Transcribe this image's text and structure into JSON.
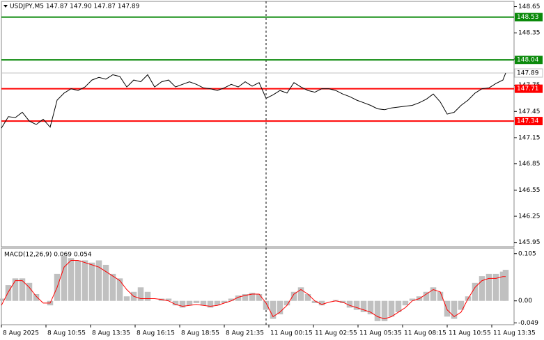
{
  "chart_data": [
    {
      "type": "line",
      "title": "USDJPY,M5  147.87 147.90 147.87 147.89",
      "color": "#000000",
      "x": [
        0,
        5,
        10,
        15,
        20,
        25,
        30,
        35,
        40,
        45,
        50,
        55,
        60,
        65,
        70,
        75,
        80,
        85,
        90,
        95,
        100,
        105,
        110,
        115,
        120,
        125,
        130,
        135,
        140,
        145,
        150,
        155,
        160,
        165,
        170,
        175,
        180,
        185,
        190,
        195,
        200,
        205,
        210,
        215,
        220,
        225,
        230,
        235,
        240,
        245,
        250,
        255,
        260,
        265,
        270,
        275,
        280,
        285,
        290,
        295,
        300,
        305,
        310,
        315,
        320,
        325,
        330,
        335,
        340,
        345,
        350,
        355,
        360,
        362
      ],
      "values": [
        147.26,
        147.39,
        147.38,
        147.44,
        147.34,
        147.3,
        147.36,
        147.27,
        147.58,
        147.66,
        147.71,
        147.69,
        147.73,
        147.81,
        147.84,
        147.82,
        147.87,
        147.85,
        147.73,
        147.81,
        147.79,
        147.87,
        147.73,
        147.79,
        147.81,
        147.73,
        147.76,
        147.79,
        147.76,
        147.72,
        147.71,
        147.69,
        147.72,
        147.76,
        147.73,
        147.79,
        147.74,
        147.78,
        147.6,
        147.64,
        147.69,
        147.66,
        147.78,
        147.73,
        147.69,
        147.67,
        147.71,
        147.71,
        147.69,
        147.65,
        147.62,
        147.58,
        147.55,
        147.52,
        147.48,
        147.47,
        147.49,
        147.5,
        147.51,
        147.52,
        147.55,
        147.59,
        147.65,
        147.56,
        147.42,
        147.44,
        147.52,
        147.58,
        147.66,
        147.71,
        147.72,
        147.77,
        147.81,
        147.89
      ],
      "xlim": [
        0,
        368
      ],
      "xticks": [
        {
          "value": 0,
          "label": "8 Aug 2025"
        },
        {
          "value": 32,
          "label": "8 Aug 10:55"
        },
        {
          "value": 64,
          "label": "8 Aug 13:35"
        },
        {
          "value": 96,
          "label": "8 Aug 16:15"
        },
        {
          "value": 128,
          "label": "8 Aug 18:55"
        },
        {
          "value": 160,
          "label": "8 Aug 21:35"
        },
        {
          "value": 192,
          "label": "11 Aug 00:15"
        },
        {
          "value": 224,
          "label": "11 Aug 02:55"
        },
        {
          "value": 256,
          "label": "11 Aug 05:35"
        },
        {
          "value": 288,
          "label": "11 Aug 08:15"
        },
        {
          "value": 320,
          "label": "11 Aug 10:55"
        },
        {
          "value": 352,
          "label": "11 Aug 13:35"
        }
      ],
      "ylim": [
        145.9,
        148.71
      ],
      "yticks": [
        148.65,
        148.35,
        148.05,
        147.75,
        147.45,
        147.15,
        146.85,
        146.55,
        146.25,
        145.95
      ],
      "levels": [
        {
          "value": 148.53,
          "color": "#0b8a0b"
        },
        {
          "value": 148.04,
          "color": "#0b8a0b"
        },
        {
          "value": 147.71,
          "color": "#ff0000"
        },
        {
          "value": 147.34,
          "color": "#ff0000"
        }
      ],
      "last": {
        "value": 147.89,
        "color": "#c0c0c0"
      },
      "grid": false
    },
    {
      "type": "macd",
      "title": "MACD(12,26,9) 0.069 0.054",
      "histogram": {
        "color": "#c0c0c0",
        "values": [
          0.005,
          0.035,
          0.05,
          0.05,
          0.04,
          0.015,
          0.0,
          -0.01,
          0.06,
          0.1,
          0.095,
          0.09,
          0.09,
          0.085,
          0.09,
          0.08,
          0.06,
          0.05,
          0.01,
          0.02,
          0.03,
          0.02,
          0.0,
          0.005,
          0.005,
          -0.01,
          -0.015,
          -0.01,
          -0.005,
          -0.01,
          -0.015,
          -0.01,
          -0.005,
          0.005,
          0.012,
          0.015,
          0.018,
          0.015,
          -0.02,
          -0.04,
          -0.03,
          -0.01,
          0.02,
          0.03,
          0.015,
          -0.005,
          -0.01,
          0.0,
          0.002,
          -0.005,
          -0.015,
          -0.02,
          -0.025,
          -0.03,
          -0.045,
          -0.045,
          -0.035,
          -0.025,
          -0.01,
          0.005,
          0.01,
          0.02,
          0.03,
          0.02,
          -0.035,
          -0.04,
          -0.02,
          0.01,
          0.04,
          0.055,
          0.06,
          0.06,
          0.065,
          0.069
        ]
      },
      "signal": {
        "color": "#ff0000",
        "values": [
          -0.01,
          0.02,
          0.045,
          0.045,
          0.03,
          0.01,
          -0.005,
          -0.005,
          0.03,
          0.075,
          0.09,
          0.09,
          0.085,
          0.08,
          0.075,
          0.065,
          0.055,
          0.045,
          0.025,
          0.01,
          0.005,
          0.005,
          0.005,
          0.003,
          0.0,
          -0.008,
          -0.012,
          -0.01,
          -0.008,
          -0.01,
          -0.012,
          -0.01,
          -0.005,
          0.0,
          0.008,
          0.012,
          0.015,
          0.015,
          -0.005,
          -0.035,
          -0.025,
          -0.01,
          0.015,
          0.025,
          0.015,
          0.0,
          -0.008,
          -0.003,
          0.0,
          -0.003,
          -0.01,
          -0.015,
          -0.02,
          -0.025,
          -0.035,
          -0.04,
          -0.035,
          -0.025,
          -0.015,
          0.0,
          0.005,
          0.015,
          0.025,
          0.02,
          -0.02,
          -0.035,
          -0.025,
          0.005,
          0.03,
          0.045,
          0.05,
          0.05,
          0.054,
          0.054
        ]
      },
      "ylim": [
        -0.053,
        0.117
      ],
      "yticks": [
        0.105,
        {
          "value": 0,
          "label": "0.00"
        },
        -0.049
      ]
    }
  ]
}
